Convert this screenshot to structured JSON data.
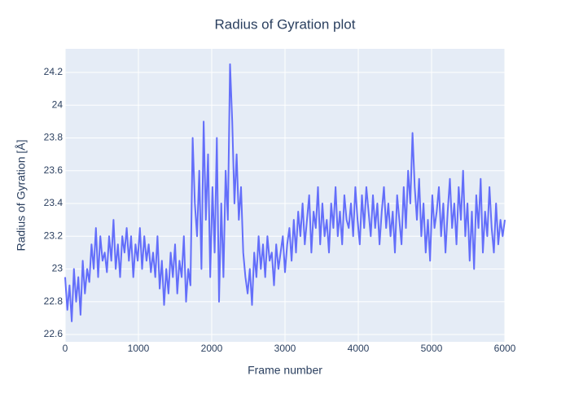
{
  "chart_data": {
    "type": "line",
    "title": "Radius of Gyration plot",
    "x_label": "Frame number",
    "y_label": "Radius of Gyration [Å]",
    "xlim": [
      0,
      6000
    ],
    "ylim": [
      22.555,
      24.344
    ],
    "xticks": [
      0,
      1000,
      2000,
      3000,
      4000,
      5000,
      6000
    ],
    "yticks": [
      22.6,
      22.8,
      23,
      23.2,
      23.4,
      23.6,
      23.8,
      24,
      24.2
    ],
    "grid": true,
    "x": [
      0,
      30,
      60,
      90,
      120,
      150,
      180,
      210,
      240,
      270,
      300,
      330,
      360,
      390,
      420,
      450,
      480,
      510,
      540,
      570,
      600,
      630,
      660,
      690,
      720,
      750,
      780,
      810,
      840,
      870,
      900,
      930,
      960,
      990,
      1020,
      1050,
      1080,
      1110,
      1140,
      1170,
      1200,
      1230,
      1260,
      1290,
      1320,
      1350,
      1380,
      1410,
      1440,
      1470,
      1500,
      1530,
      1560,
      1590,
      1620,
      1650,
      1680,
      1710,
      1740,
      1770,
      1800,
      1830,
      1860,
      1890,
      1920,
      1950,
      1980,
      2010,
      2040,
      2070,
      2100,
      2130,
      2160,
      2190,
      2220,
      2250,
      2280,
      2310,
      2340,
      2370,
      2400,
      2430,
      2460,
      2490,
      2520,
      2550,
      2580,
      2610,
      2640,
      2670,
      2700,
      2730,
      2760,
      2790,
      2820,
      2850,
      2880,
      2910,
      2940,
      2970,
      3000,
      3030,
      3060,
      3090,
      3120,
      3150,
      3180,
      3210,
      3240,
      3270,
      3300,
      3330,
      3360,
      3390,
      3420,
      3450,
      3480,
      3510,
      3540,
      3570,
      3600,
      3630,
      3660,
      3690,
      3720,
      3750,
      3780,
      3810,
      3840,
      3870,
      3900,
      3930,
      3960,
      3990,
      4020,
      4050,
      4080,
      4110,
      4140,
      4170,
      4200,
      4230,
      4260,
      4290,
      4320,
      4350,
      4380,
      4410,
      4440,
      4470,
      4500,
      4530,
      4560,
      4590,
      4620,
      4650,
      4680,
      4710,
      4740,
      4770,
      4800,
      4830,
      4860,
      4890,
      4920,
      4950,
      4980,
      5010,
      5040,
      5070,
      5100,
      5130,
      5160,
      5190,
      5220,
      5250,
      5280,
      5310,
      5340,
      5370,
      5400,
      5430,
      5460,
      5490,
      5520,
      5550,
      5580,
      5610,
      5640,
      5670,
      5700,
      5730,
      5760,
      5790,
      5820,
      5850,
      5880,
      5910,
      5940,
      5970,
      6000
    ],
    "series": [
      {
        "color": "#636efa",
        "values": [
          22.95,
          22.75,
          22.9,
          22.68,
          23.0,
          22.8,
          22.95,
          22.72,
          23.05,
          22.85,
          23.0,
          22.92,
          23.15,
          23.0,
          23.25,
          22.95,
          23.2,
          23.05,
          23.1,
          22.98,
          23.2,
          23.05,
          23.3,
          23.0,
          23.15,
          22.95,
          23.2,
          23.1,
          23.25,
          23.05,
          23.2,
          22.95,
          23.15,
          23.05,
          23.25,
          23.0,
          23.2,
          23.05,
          23.15,
          22.98,
          23.1,
          22.95,
          23.2,
          22.88,
          23.05,
          22.78,
          23.0,
          22.85,
          23.1,
          22.95,
          23.15,
          22.85,
          23.05,
          22.95,
          23.2,
          22.8,
          23.0,
          22.9,
          23.8,
          23.4,
          23.2,
          23.6,
          23.0,
          23.9,
          23.3,
          23.7,
          22.95,
          23.5,
          23.1,
          23.8,
          22.8,
          23.4,
          22.95,
          23.6,
          23.3,
          24.25,
          23.9,
          23.4,
          23.7,
          23.3,
          23.5,
          23.1,
          22.95,
          22.85,
          23.0,
          22.78,
          23.1,
          22.95,
          23.2,
          23.0,
          23.15,
          22.95,
          23.2,
          23.05,
          23.1,
          22.9,
          23.15,
          23.0,
          23.1,
          23.2,
          22.98,
          23.15,
          23.25,
          23.05,
          23.3,
          23.1,
          23.35,
          23.2,
          23.4,
          23.15,
          23.3,
          23.45,
          23.1,
          23.35,
          23.25,
          23.5,
          23.15,
          23.4,
          23.2,
          23.3,
          23.1,
          23.4,
          23.25,
          23.5,
          23.2,
          23.35,
          23.15,
          23.45,
          23.3,
          23.25,
          23.4,
          23.2,
          23.5,
          23.3,
          23.15,
          23.45,
          23.25,
          23.5,
          23.35,
          23.2,
          23.45,
          23.25,
          23.4,
          23.15,
          23.35,
          23.5,
          23.25,
          23.4,
          23.2,
          23.35,
          23.1,
          23.45,
          23.3,
          23.15,
          23.5,
          23.25,
          23.6,
          23.4,
          23.83,
          23.5,
          23.3,
          23.55,
          23.2,
          23.4,
          23.1,
          23.3,
          23.05,
          23.45,
          23.25,
          23.35,
          23.5,
          23.2,
          23.4,
          23.1,
          23.35,
          23.55,
          23.25,
          23.4,
          23.15,
          23.5,
          23.3,
          23.6,
          23.2,
          23.4,
          23.05,
          23.35,
          23.0,
          23.45,
          23.25,
          23.55,
          23.1,
          23.35,
          23.2,
          23.5,
          23.25,
          23.1,
          23.4,
          23.15,
          23.3,
          23.2,
          23.3
        ]
      }
    ]
  }
}
